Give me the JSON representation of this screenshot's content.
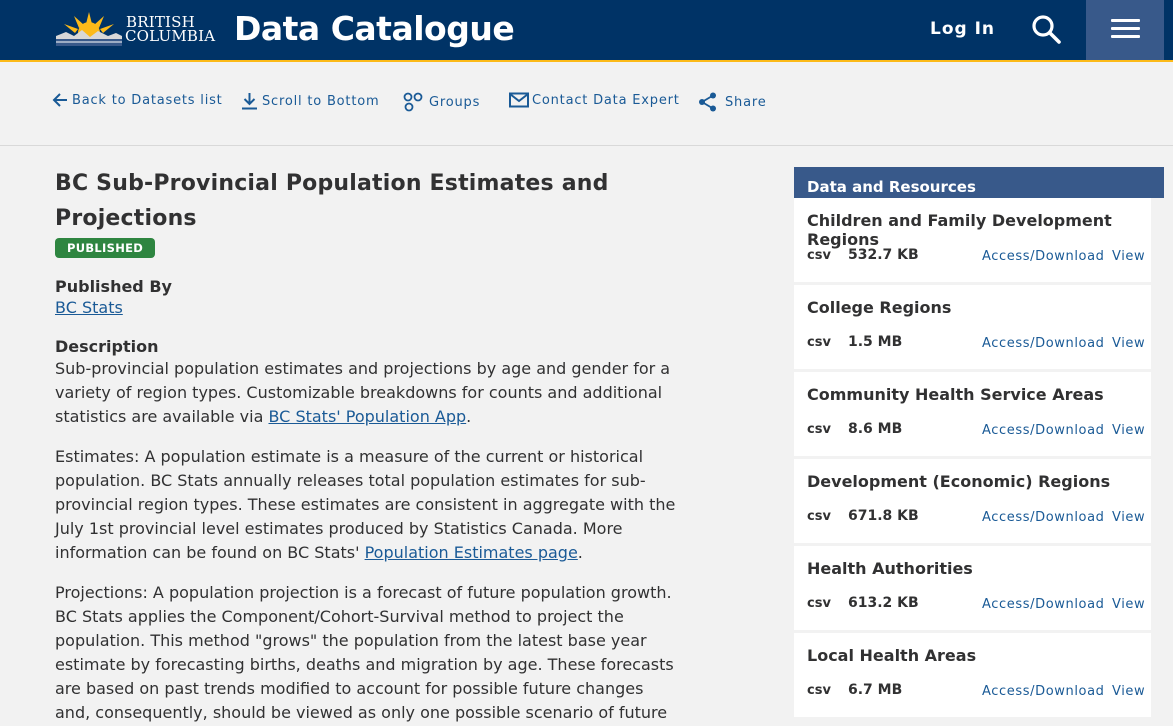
{
  "header": {
    "logo_line1": "BRITISH",
    "logo_line2": "COLUMBIA",
    "title": "Data Catalogue",
    "login": "Log In"
  },
  "toolbar": {
    "back": "Back to Datasets list",
    "scroll": "Scroll to Bottom",
    "groups": "Groups",
    "contact": "Contact Data Expert",
    "share": "Share"
  },
  "dataset": {
    "title_line1": "BC Sub-Provincial Population Estimates and",
    "title_line2": "Projections",
    "status": "PUBLISHED",
    "published_by_label": "Published By",
    "publisher": "BC Stats",
    "description_label": "Description",
    "desc1_text": "Sub-provincial population estimates and projections by age and gender for a variety of region types. Customizable breakdowns for counts and additional statistics are available via ",
    "desc1_link": "BC Stats' Population App",
    "desc1_end": ".",
    "desc2_text": "Estimates: A population estimate is a measure of the current or historical population. BC Stats annually releases total population estimates for sub-provincial region types. These estimates are consistent in aggregate with the July 1st provincial level estimates produced by Statistics Canada. More information can be found on BC Stats' ",
    "desc2_link": "Population Estimates page",
    "desc2_end": ".",
    "desc3_text": "Projections: A population projection is a forecast of future population growth. BC Stats applies the Component/Cohort-Survival method to project the population. This method \"grows\" the population from the latest base year estimate by forecasting births, deaths and migration by age. These forecasts are based on past trends modified to account for possible future changes and, consequently, should be viewed as only one possible scenario of future population. Projections"
  },
  "resources": {
    "heading": "Data and Resources",
    "access_label": "Access/Download",
    "view_label": "View",
    "items": [
      {
        "title": "Children and Family Development Regions",
        "format": "csv",
        "size": "532.7 KB"
      },
      {
        "title": "College Regions",
        "format": "csv",
        "size": "1.5 MB"
      },
      {
        "title": "Community Health Service Areas",
        "format": "csv",
        "size": "8.6 MB"
      },
      {
        "title": "Development (Economic) Regions",
        "format": "csv",
        "size": "671.8 KB"
      },
      {
        "title": "Health Authorities",
        "format": "csv",
        "size": "613.2 KB"
      },
      {
        "title": "Local Health Areas",
        "format": "csv",
        "size": "6.7 MB"
      }
    ]
  }
}
